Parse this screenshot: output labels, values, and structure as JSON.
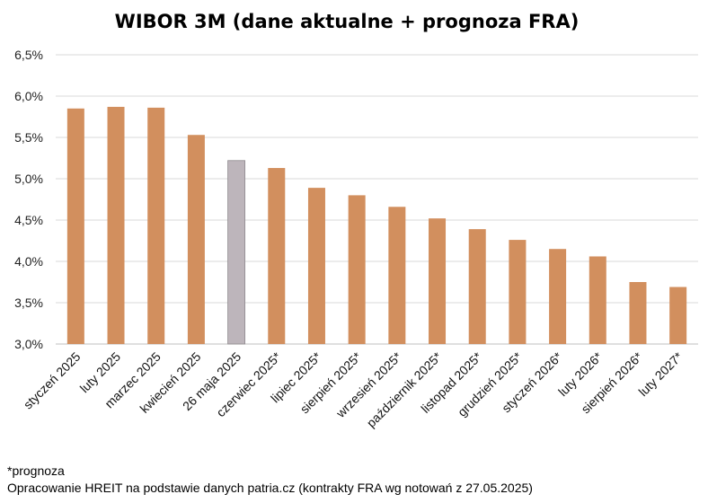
{
  "chart_data": {
    "type": "bar",
    "title": "WIBOR 3M (dane aktualne + prognoza FRA)",
    "xlabel": "",
    "ylabel": "",
    "ylim": [
      3.0,
      6.5
    ],
    "yticks": [
      3.0,
      3.5,
      4.0,
      4.5,
      5.0,
      5.5,
      6.0,
      6.5
    ],
    "ytick_labels": [
      "3,0%",
      "3,5%",
      "4,0%",
      "4,5%",
      "5,0%",
      "5,5%",
      "6,0%",
      "6,5%"
    ],
    "grid": true,
    "legend": "none",
    "categories": [
      "styczeń 2025",
      "luty 2025",
      "marzec 2025",
      "kwiecień 2025",
      "26 maja 2025",
      "czerwiec 2025*",
      "lipiec 2025*",
      "sierpień 2025*",
      "wrzesień 2025*",
      "październik 2025*",
      "listopad 2025*",
      "grudzień 2025*",
      "styczeń 2026*",
      "luty 2026*",
      "sierpień 2026*",
      "luty 2027*"
    ],
    "values": [
      5.85,
      5.87,
      5.86,
      5.53,
      5.22,
      5.13,
      4.89,
      4.8,
      4.66,
      4.52,
      4.39,
      4.26,
      4.15,
      4.06,
      3.75,
      3.69
    ],
    "colors": [
      "#d28f5e",
      "#d28f5e",
      "#d28f5e",
      "#d28f5e",
      "#bdb5bb",
      "#d28f5e",
      "#d28f5e",
      "#d28f5e",
      "#d28f5e",
      "#d28f5e",
      "#d28f5e",
      "#d28f5e",
      "#d28f5e",
      "#d28f5e",
      "#d28f5e",
      "#d28f5e"
    ],
    "gridline_color": "#d9d9d9"
  },
  "notes": {
    "forecast": "*prognoza",
    "source": "Opracowanie HREIT na podstawie danych patria.cz (kontrakty FRA wg notowań z 27.05.2025)"
  }
}
